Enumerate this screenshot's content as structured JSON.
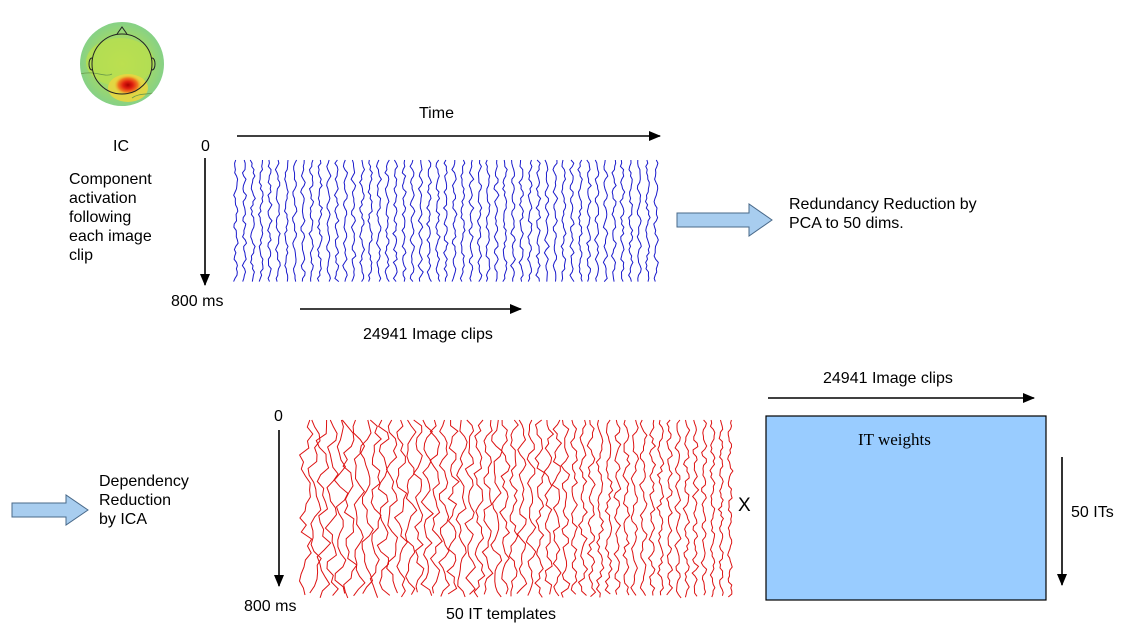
{
  "top": {
    "ic_label": "IC",
    "time_label": "Time",
    "zero_label": "0",
    "component_text": "Component\nactivation\nfollowing\neach image\nclip",
    "ms_label": "800 ms",
    "clips_label": "24941 Image clips",
    "redundancy_text": "Redundancy Reduction by\nPCA to 50 dims."
  },
  "bottom": {
    "dependency_text": "Dependency\nReduction\nby ICA",
    "zero_label": "0",
    "ms_label": "800 ms",
    "templates_label": "50 IT templates",
    "times_symbol": "X",
    "clips_label": "24941 Image clips",
    "weights_label": "IT weights",
    "its_label": "50 ITs"
  },
  "colors": {
    "blue_wave": "#1a1acc",
    "red_wave": "#dd1111",
    "arrow_fill": "#a8cdef",
    "arrow_stroke": "#4a6a8a",
    "matrix_fill": "#99ccff"
  }
}
